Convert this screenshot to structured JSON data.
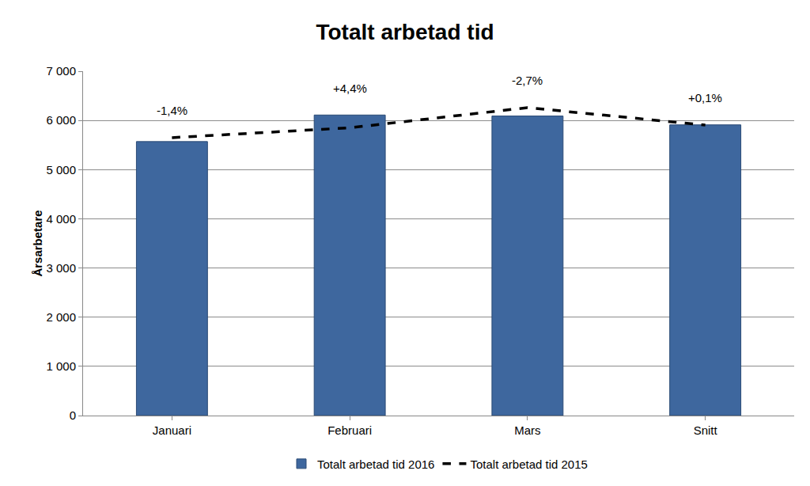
{
  "chart_data": {
    "type": "bar",
    "title": "Totalt arbetad tid",
    "y_label": "Årsarbetare",
    "categories": [
      "Januari",
      "Februari",
      "Mars",
      "Snitt"
    ],
    "series": [
      {
        "name": "Totalt arbetad tid 2016",
        "type": "bar",
        "color": "#3e679e",
        "values": [
          5570,
          6110,
          6090,
          5910
        ]
      },
      {
        "name": "Totalt arbetad tid 2015",
        "type": "line",
        "color": "#000000",
        "line_style": "dash",
        "values": [
          5650,
          5850,
          6260,
          5905
        ]
      }
    ],
    "annotations": [
      {
        "category": "Januari",
        "text": "-1,4%"
      },
      {
        "category": "Februari",
        "text": "+4,4%"
      },
      {
        "category": "Mars",
        "text": "-2,7%"
      },
      {
        "category": "Snitt",
        "text": "+0,1%"
      }
    ],
    "ylim": [
      0,
      7000
    ],
    "yticks": [
      0,
      {
        "value": 1000,
        "label": "1 000"
      },
      {
        "value": 2000,
        "label": "2 000"
      },
      {
        "value": 3000,
        "label": "3 000"
      },
      {
        "value": 4000,
        "label": "4 000"
      },
      {
        "value": 5000,
        "label": "5 000"
      },
      {
        "value": 6000,
        "label": "6 000"
      },
      {
        "value": 7000,
        "label": "7 000"
      }
    ],
    "grid": true,
    "legend": "bottom"
  }
}
